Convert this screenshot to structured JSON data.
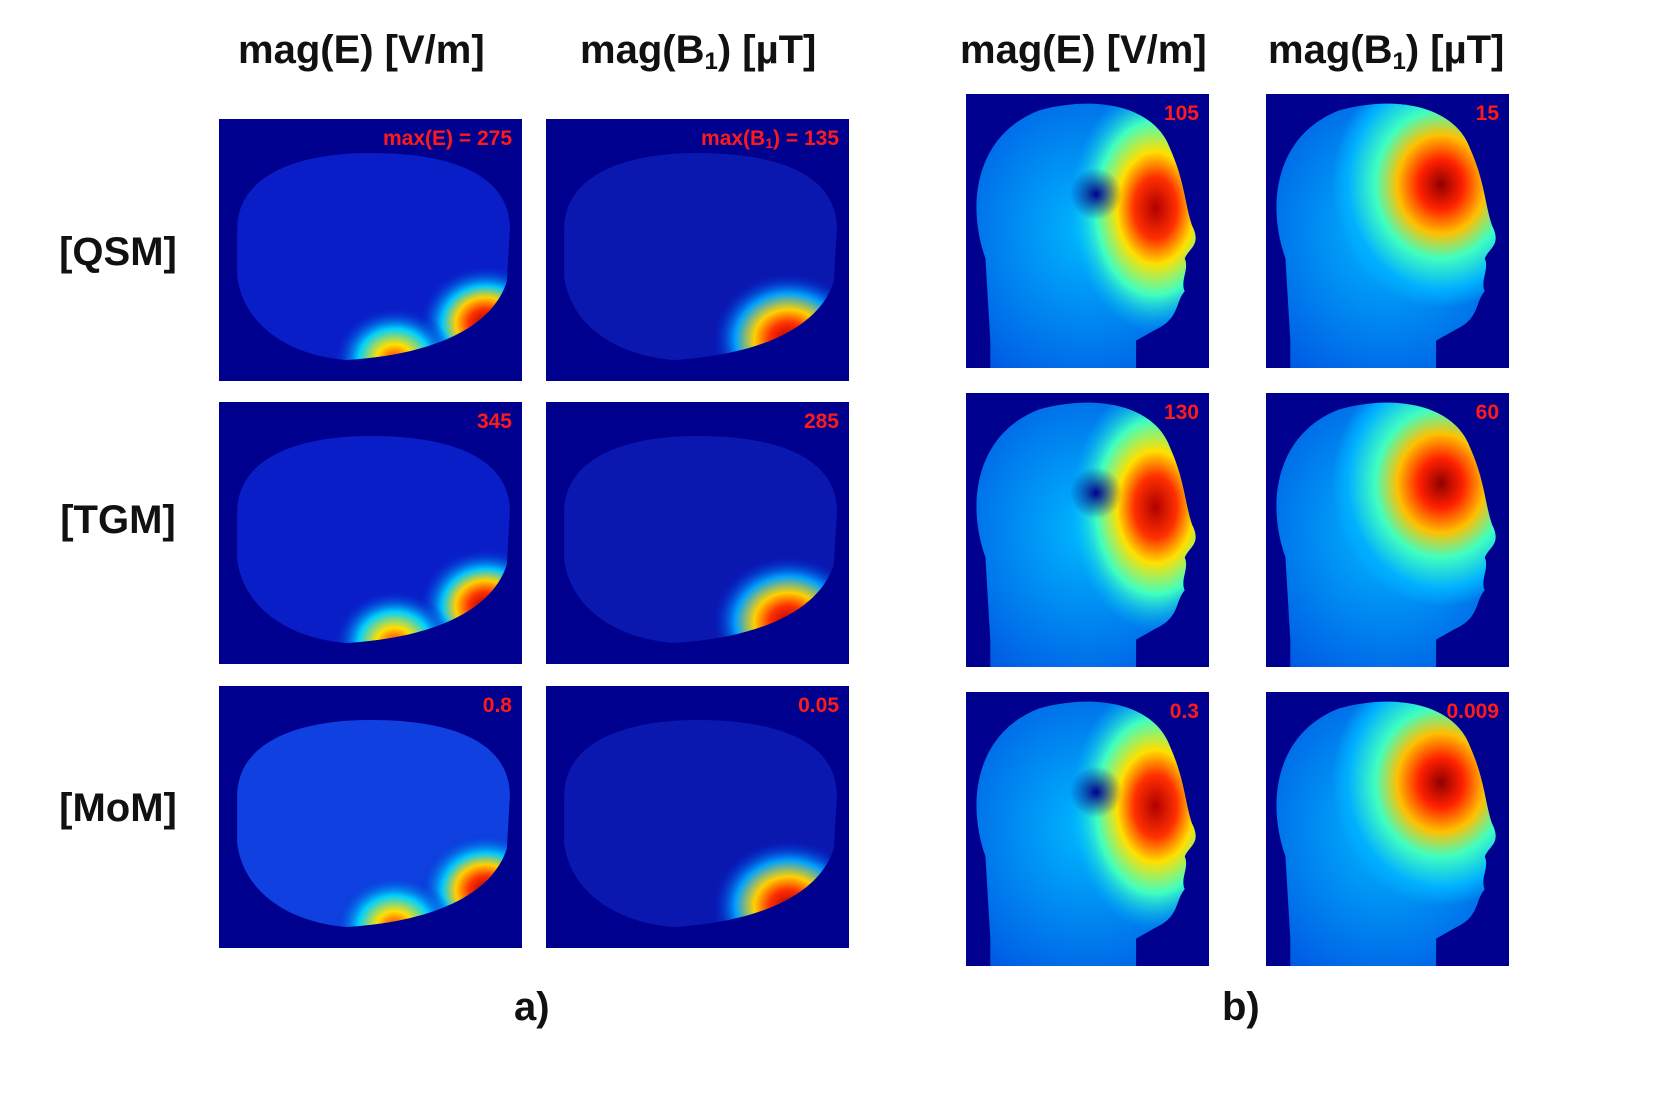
{
  "panel_a": {
    "letter": "a)",
    "col_e": {
      "pre": "mag(E) [V/m]"
    },
    "col_b": {
      "pre": "mag(B",
      "sub": "1",
      "post": ") [µT]"
    },
    "rows": [
      {
        "label": "[QSM]",
        "e_max": "max(E) = 275",
        "b_max_pre": "max(B",
        "b_max_sub": "1",
        "b_max_post": ") = 135"
      },
      {
        "label": "[TGM]",
        "e_max": "345",
        "b_max_pre": "285",
        "b_max_sub": "",
        "b_max_post": ""
      },
      {
        "label": "[MoM]",
        "e_max": "0.8",
        "b_max_pre": "0.05",
        "b_max_sub": "",
        "b_max_post": ""
      }
    ]
  },
  "panel_b": {
    "letter": "b)",
    "col_e": {
      "pre": "mag(E) [V/m]"
    },
    "col_b": {
      "pre": "mag(B",
      "sub": "1",
      "post": ") [µT]"
    },
    "rows": [
      {
        "e_max": "105",
        "b_max": "15"
      },
      {
        "e_max": "130",
        "b_max": "60"
      },
      {
        "e_max": "0.3",
        "b_max": "0.009"
      }
    ]
  },
  "colors": {
    "background": "#00008f",
    "label": "#ff1a1a"
  }
}
